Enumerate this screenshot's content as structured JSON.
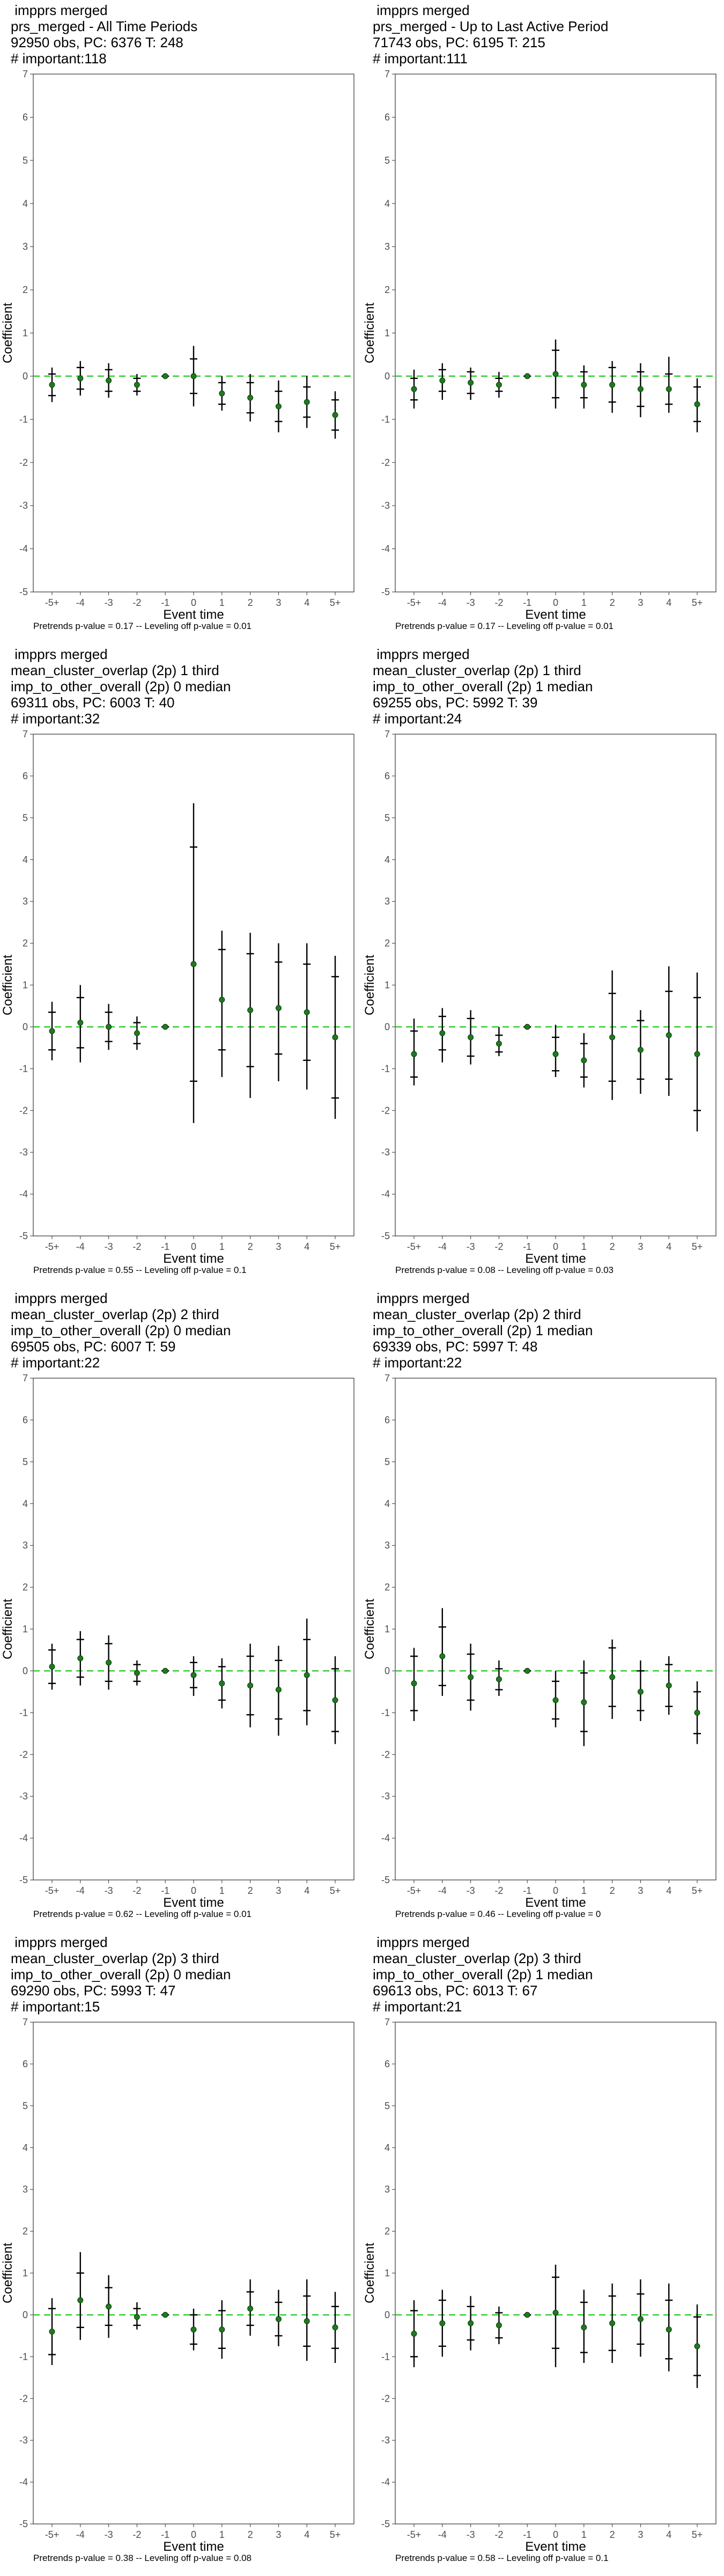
{
  "chart_data": [
    {
      "type": "scatter",
      "title_lines": [
        " impprs merged",
        "prs_merged - All Time Periods",
        "92950 obs, PC: 6376 T: 248",
        "# important:118"
      ],
      "xlabel": "Event time",
      "ylabel": "Coefficient",
      "categories": [
        "-5+",
        "-4",
        "-3",
        "-2",
        "-1",
        "0",
        "1",
        "2",
        "3",
        "4",
        "5+"
      ],
      "ylim": [
        -5,
        7
      ],
      "yticks": [
        "-5",
        "-4",
        "-3",
        "-2",
        "-1",
        "0",
        "1",
        "2",
        "3",
        "4",
        "5",
        "6",
        "7"
      ],
      "reference_line": 0,
      "footer": "Pretrends p-value = 0.17 -- Leveling off p-value = 0.01",
      "series": [
        {
          "values": [
            -0.2,
            -0.05,
            -0.1,
            -0.2,
            0,
            0,
            -0.4,
            -0.5,
            -0.7,
            -0.6,
            -0.9
          ],
          "ci_inner_low": [
            -0.45,
            -0.3,
            -0.35,
            -0.35,
            0,
            -0.4,
            -0.65,
            -0.85,
            -1.05,
            -0.95,
            -1.25
          ],
          "ci_inner_high": [
            0.05,
            0.2,
            0.15,
            -0.05,
            0,
            0.4,
            -0.15,
            -0.15,
            -0.35,
            -0.25,
            -0.55
          ],
          "ci_outer_low": [
            -0.6,
            -0.45,
            -0.5,
            -0.45,
            0,
            -0.7,
            -0.8,
            -1.05,
            -1.3,
            -1.2,
            -1.45
          ],
          "ci_outer_high": [
            0.2,
            0.35,
            0.3,
            0.05,
            0,
            0.7,
            0,
            0.05,
            -0.1,
            0,
            -0.35
          ]
        }
      ]
    },
    {
      "type": "scatter",
      "title_lines": [
        " impprs merged",
        "prs_merged - Up to Last Active Period",
        "71743 obs, PC: 6195 T: 215",
        "# important:111"
      ],
      "xlabel": "Event time",
      "ylabel": "Coefficient",
      "categories": [
        "-5+",
        "-4",
        "-3",
        "-2",
        "-1",
        "0",
        "1",
        "2",
        "3",
        "4",
        "5+"
      ],
      "ylim": [
        -5,
        7
      ],
      "yticks": [
        "-5",
        "-4",
        "-3",
        "-2",
        "-1",
        "0",
        "1",
        "2",
        "3",
        "4",
        "5",
        "6",
        "7"
      ],
      "reference_line": 0,
      "footer": "Pretrends p-value = 0.17 -- Leveling off p-value = 0.01",
      "series": [
        {
          "values": [
            -0.3,
            -0.1,
            -0.15,
            -0.2,
            0,
            0.05,
            -0.2,
            -0.2,
            -0.3,
            -0.3,
            -0.65
          ],
          "ci_inner_low": [
            -0.55,
            -0.35,
            -0.4,
            -0.35,
            0,
            -0.5,
            -0.5,
            -0.6,
            -0.7,
            -0.65,
            -1.05
          ],
          "ci_inner_high": [
            -0.05,
            0.15,
            0.1,
            -0.05,
            0,
            0.6,
            0.1,
            0.2,
            0.1,
            0.05,
            -0.25
          ],
          "ci_outer_low": [
            -0.75,
            -0.55,
            -0.55,
            -0.5,
            0,
            -0.75,
            -0.75,
            -0.85,
            -0.95,
            -0.85,
            -1.3
          ],
          "ci_outer_high": [
            0.15,
            0.3,
            0.2,
            0.1,
            0,
            0.85,
            0.25,
            0.35,
            0.3,
            0.45,
            -0.05
          ]
        }
      ]
    },
    {
      "type": "scatter",
      "title_lines": [
        " impprs merged",
        "mean_cluster_overlap (2p) 1 third",
        "imp_to_other_overall (2p) 0 median",
        "69311 obs, PC: 6003 T: 40",
        "# important:32"
      ],
      "xlabel": "Event time",
      "ylabel": "Coefficient",
      "categories": [
        "-5+",
        "-4",
        "-3",
        "-2",
        "-1",
        "0",
        "1",
        "2",
        "3",
        "4",
        "5+"
      ],
      "ylim": [
        -5,
        7
      ],
      "yticks": [
        "-5",
        "-4",
        "-3",
        "-2",
        "-1",
        "0",
        "1",
        "2",
        "3",
        "4",
        "5",
        "6",
        "7"
      ],
      "reference_line": 0,
      "footer": "Pretrends p-value = 0.55 -- Leveling off p-value = 0.1",
      "series": [
        {
          "values": [
            -0.1,
            0.1,
            0,
            -0.15,
            0,
            1.5,
            0.65,
            0.4,
            0.45,
            0.35,
            -0.25
          ],
          "ci_inner_low": [
            -0.55,
            -0.5,
            -0.35,
            -0.4,
            0,
            -1.3,
            -0.55,
            -0.95,
            -0.65,
            -0.8,
            -1.7
          ],
          "ci_inner_high": [
            0.35,
            0.7,
            0.35,
            0.1,
            0,
            4.3,
            1.85,
            1.75,
            1.55,
            1.5,
            1.2
          ],
          "ci_outer_low": [
            -0.8,
            -0.85,
            -0.55,
            -0.55,
            0,
            -2.3,
            -1.2,
            -1.7,
            -1.3,
            -1.5,
            -2.2
          ],
          "ci_outer_high": [
            0.6,
            1,
            0.55,
            0.25,
            0,
            5.35,
            2.3,
            2.25,
            2,
            2,
            1.7
          ]
        }
      ]
    },
    {
      "type": "scatter",
      "title_lines": [
        " impprs merged",
        "mean_cluster_overlap (2p) 1 third",
        "imp_to_other_overall (2p) 1 median",
        "69255 obs, PC: 5992 T: 39",
        "# important:24"
      ],
      "xlabel": "Event time",
      "ylabel": "Coefficient",
      "categories": [
        "-5+",
        "-4",
        "-3",
        "-2",
        "-1",
        "0",
        "1",
        "2",
        "3",
        "4",
        "5+"
      ],
      "ylim": [
        -5,
        7
      ],
      "yticks": [
        "-5",
        "-4",
        "-3",
        "-2",
        "-1",
        "0",
        "1",
        "2",
        "3",
        "4",
        "5",
        "6",
        "7"
      ],
      "reference_line": 0,
      "footer": "Pretrends p-value = 0.08 -- Leveling off p-value = 0.03",
      "series": [
        {
          "values": [
            -0.65,
            -0.15,
            -0.25,
            -0.4,
            0,
            -0.65,
            -0.8,
            -0.25,
            -0.55,
            -0.2,
            -0.65
          ],
          "ci_inner_low": [
            -1.2,
            -0.55,
            -0.7,
            -0.6,
            0,
            -1.05,
            -1.2,
            -1.3,
            -1.25,
            -1.25,
            -2
          ],
          "ci_inner_high": [
            -0.1,
            0.25,
            0.2,
            -0.2,
            0,
            -0.25,
            -0.4,
            0.8,
            0.15,
            0.85,
            0.7
          ],
          "ci_outer_low": [
            -1.4,
            -0.85,
            -0.9,
            -0.7,
            0,
            -1.2,
            -1.45,
            -1.75,
            -1.6,
            -1.65,
            -2.5
          ],
          "ci_outer_high": [
            0.2,
            0.45,
            0.4,
            0,
            0,
            0.05,
            -0.15,
            1.35,
            0.4,
            1.45,
            1.3
          ]
        }
      ]
    },
    {
      "type": "scatter",
      "title_lines": [
        " impprs merged",
        "mean_cluster_overlap (2p) 2 third",
        "imp_to_other_overall (2p) 0 median",
        "69505 obs, PC: 6007 T: 59",
        "# important:22"
      ],
      "xlabel": "Event time",
      "ylabel": "Coefficient",
      "categories": [
        "-5+",
        "-4",
        "-3",
        "-2",
        "-1",
        "0",
        "1",
        "2",
        "3",
        "4",
        "5+"
      ],
      "ylim": [
        -5,
        7
      ],
      "yticks": [
        "-5",
        "-4",
        "-3",
        "-2",
        "-1",
        "0",
        "1",
        "2",
        "3",
        "4",
        "5",
        "6",
        "7"
      ],
      "reference_line": 0,
      "footer": "Pretrends p-value = 0.62 -- Leveling off p-value = 0.01",
      "series": [
        {
          "values": [
            0.1,
            0.3,
            0.2,
            -0.05,
            0,
            -0.1,
            -0.3,
            -0.35,
            -0.45,
            -0.1,
            -0.7
          ],
          "ci_inner_low": [
            -0.3,
            -0.15,
            -0.25,
            -0.25,
            0,
            -0.4,
            -0.7,
            -1.05,
            -1.15,
            -0.95,
            -1.45
          ],
          "ci_inner_high": [
            0.5,
            0.75,
            0.65,
            0.15,
            0,
            0.2,
            0.1,
            0.35,
            0.25,
            0.75,
            0.05
          ],
          "ci_outer_low": [
            -0.45,
            -0.35,
            -0.45,
            -0.35,
            0,
            -0.6,
            -0.9,
            -1.35,
            -1.55,
            -1.3,
            -1.75
          ],
          "ci_outer_high": [
            0.65,
            0.95,
            0.85,
            0.25,
            0,
            0.35,
            0.3,
            0.65,
            0.6,
            1.25,
            0.35
          ]
        }
      ]
    },
    {
      "type": "scatter",
      "title_lines": [
        " impprs merged",
        "mean_cluster_overlap (2p) 2 third",
        "imp_to_other_overall (2p) 1 median",
        "69339 obs, PC: 5997 T: 48",
        "# important:22"
      ],
      "xlabel": "Event time",
      "ylabel": "Coefficient",
      "categories": [
        "-5+",
        "-4",
        "-3",
        "-2",
        "-1",
        "0",
        "1",
        "2",
        "3",
        "4",
        "5+"
      ],
      "ylim": [
        -5,
        7
      ],
      "yticks": [
        "-5",
        "-4",
        "-3",
        "-2",
        "-1",
        "0",
        "1",
        "2",
        "3",
        "4",
        "5",
        "6",
        "7"
      ],
      "reference_line": 0,
      "footer": "Pretrends p-value = 0.46 -- Leveling off p-value = 0",
      "series": [
        {
          "values": [
            -0.3,
            0.35,
            -0.15,
            -0.2,
            0,
            -0.7,
            -0.75,
            -0.15,
            -0.5,
            -0.35,
            -1
          ],
          "ci_inner_low": [
            -0.95,
            -0.35,
            -0.7,
            -0.45,
            0,
            -1.15,
            -1.45,
            -0.85,
            -0.95,
            -0.85,
            -1.5
          ],
          "ci_inner_high": [
            0.35,
            1.05,
            0.4,
            0.05,
            0,
            -0.25,
            -0.05,
            0.55,
            0,
            0.15,
            -0.5
          ],
          "ci_outer_low": [
            -1.2,
            -0.6,
            -0.95,
            -0.6,
            0,
            -1.35,
            -1.8,
            -1.15,
            -1.2,
            -1.05,
            -1.75
          ],
          "ci_outer_high": [
            0.55,
            1.5,
            0.65,
            0.25,
            0,
            0,
            0.25,
            0.75,
            0.25,
            0.35,
            -0.25
          ]
        }
      ]
    },
    {
      "type": "scatter",
      "title_lines": [
        " impprs merged",
        "mean_cluster_overlap (2p) 3 third",
        "imp_to_other_overall (2p) 0 median",
        "69290 obs, PC: 5993 T: 47",
        "# important:15"
      ],
      "xlabel": "Event time",
      "ylabel": "Coefficient",
      "categories": [
        "-5+",
        "-4",
        "-3",
        "-2",
        "-1",
        "0",
        "1",
        "2",
        "3",
        "4",
        "5+"
      ],
      "ylim": [
        -5,
        7
      ],
      "yticks": [
        "-5",
        "-4",
        "-3",
        "-2",
        "-1",
        "0",
        "1",
        "2",
        "3",
        "4",
        "5",
        "6",
        "7"
      ],
      "reference_line": 0,
      "footer": "Pretrends p-value = 0.38 -- Leveling off p-value = 0.08",
      "series": [
        {
          "values": [
            -0.4,
            0.35,
            0.2,
            -0.05,
            0,
            -0.35,
            -0.35,
            0.15,
            -0.1,
            -0.15,
            -0.3
          ],
          "ci_inner_low": [
            -0.95,
            -0.3,
            -0.25,
            -0.25,
            0,
            -0.7,
            -0.8,
            -0.25,
            -0.5,
            -0.75,
            -0.8
          ],
          "ci_inner_high": [
            0.15,
            1,
            0.65,
            0.15,
            0,
            0,
            0.1,
            0.55,
            0.3,
            0.45,
            0.2
          ],
          "ci_outer_low": [
            -1.2,
            -0.6,
            -0.55,
            -0.35,
            0,
            -0.85,
            -1.05,
            -0.5,
            -0.75,
            -1.1,
            -1.15
          ],
          "ci_outer_high": [
            0.4,
            1.5,
            0.95,
            0.3,
            0,
            0.15,
            0.35,
            0.85,
            0.6,
            0.85,
            0.55
          ]
        }
      ]
    },
    {
      "type": "scatter",
      "title_lines": [
        " impprs merged",
        "mean_cluster_overlap (2p) 3 third",
        "imp_to_other_overall (2p) 1 median",
        "69613 obs, PC: 6013 T: 67",
        "# important:21"
      ],
      "xlabel": "Event time",
      "ylabel": "Coefficient",
      "categories": [
        "-5+",
        "-4",
        "-3",
        "-2",
        "-1",
        "0",
        "1",
        "2",
        "3",
        "4",
        "5+"
      ],
      "ylim": [
        -5,
        7
      ],
      "yticks": [
        "-5",
        "-4",
        "-3",
        "-2",
        "-1",
        "0",
        "1",
        "2",
        "3",
        "4",
        "5",
        "6",
        "7"
      ],
      "reference_line": 0,
      "footer": "Pretrends p-value = 0.58 -- Leveling off p-value = 0.1",
      "series": [
        {
          "values": [
            -0.45,
            -0.2,
            -0.2,
            -0.25,
            0,
            0.05,
            -0.3,
            -0.2,
            -0.1,
            -0.35,
            -0.75
          ],
          "ci_inner_low": [
            -1,
            -0.75,
            -0.6,
            -0.55,
            0,
            -0.8,
            -0.9,
            -0.85,
            -0.7,
            -1.05,
            -1.45
          ],
          "ci_inner_high": [
            0.1,
            0.35,
            0.2,
            0.05,
            0,
            0.9,
            0.3,
            0.45,
            0.5,
            0.35,
            -0.05
          ],
          "ci_outer_low": [
            -1.25,
            -1,
            -0.85,
            -0.7,
            0,
            -1.25,
            -1.15,
            -1.15,
            -1,
            -1.35,
            -1.75
          ],
          "ci_outer_high": [
            0.35,
            0.6,
            0.45,
            0.2,
            0,
            1.2,
            0.6,
            0.75,
            0.85,
            0.75,
            0.25
          ]
        }
      ]
    }
  ]
}
